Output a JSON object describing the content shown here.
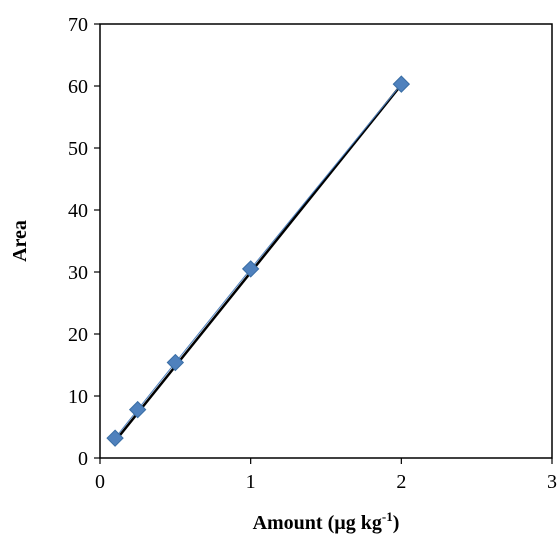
{
  "chart_data": {
    "type": "scatter",
    "title": "",
    "xlabel": "Amount (µg kg",
    "xlabel_sup": "-1",
    "xlabel_end": ")",
    "ylabel": "Area",
    "xlim": [
      0,
      3
    ],
    "ylim": [
      0,
      70
    ],
    "x_ticks": [
      "0",
      "1",
      "2",
      "3"
    ],
    "y_ticks": [
      "0",
      "10",
      "20",
      "30",
      "40",
      "50",
      "60",
      "70"
    ],
    "grid": false,
    "legend": "none",
    "series": [
      {
        "marker": "diamond",
        "color": "#4f81bd",
        "x": [
          0.1,
          0.25,
          0.5,
          1.0,
          2.0
        ],
        "y": [
          3.2,
          7.8,
          15.4,
          30.5,
          60.3
        ]
      }
    ],
    "trendline": {
      "type": "linear",
      "color": "#000000",
      "x": [
        0.1,
        2.0
      ],
      "y": [
        2.7,
        60.2
      ]
    }
  }
}
